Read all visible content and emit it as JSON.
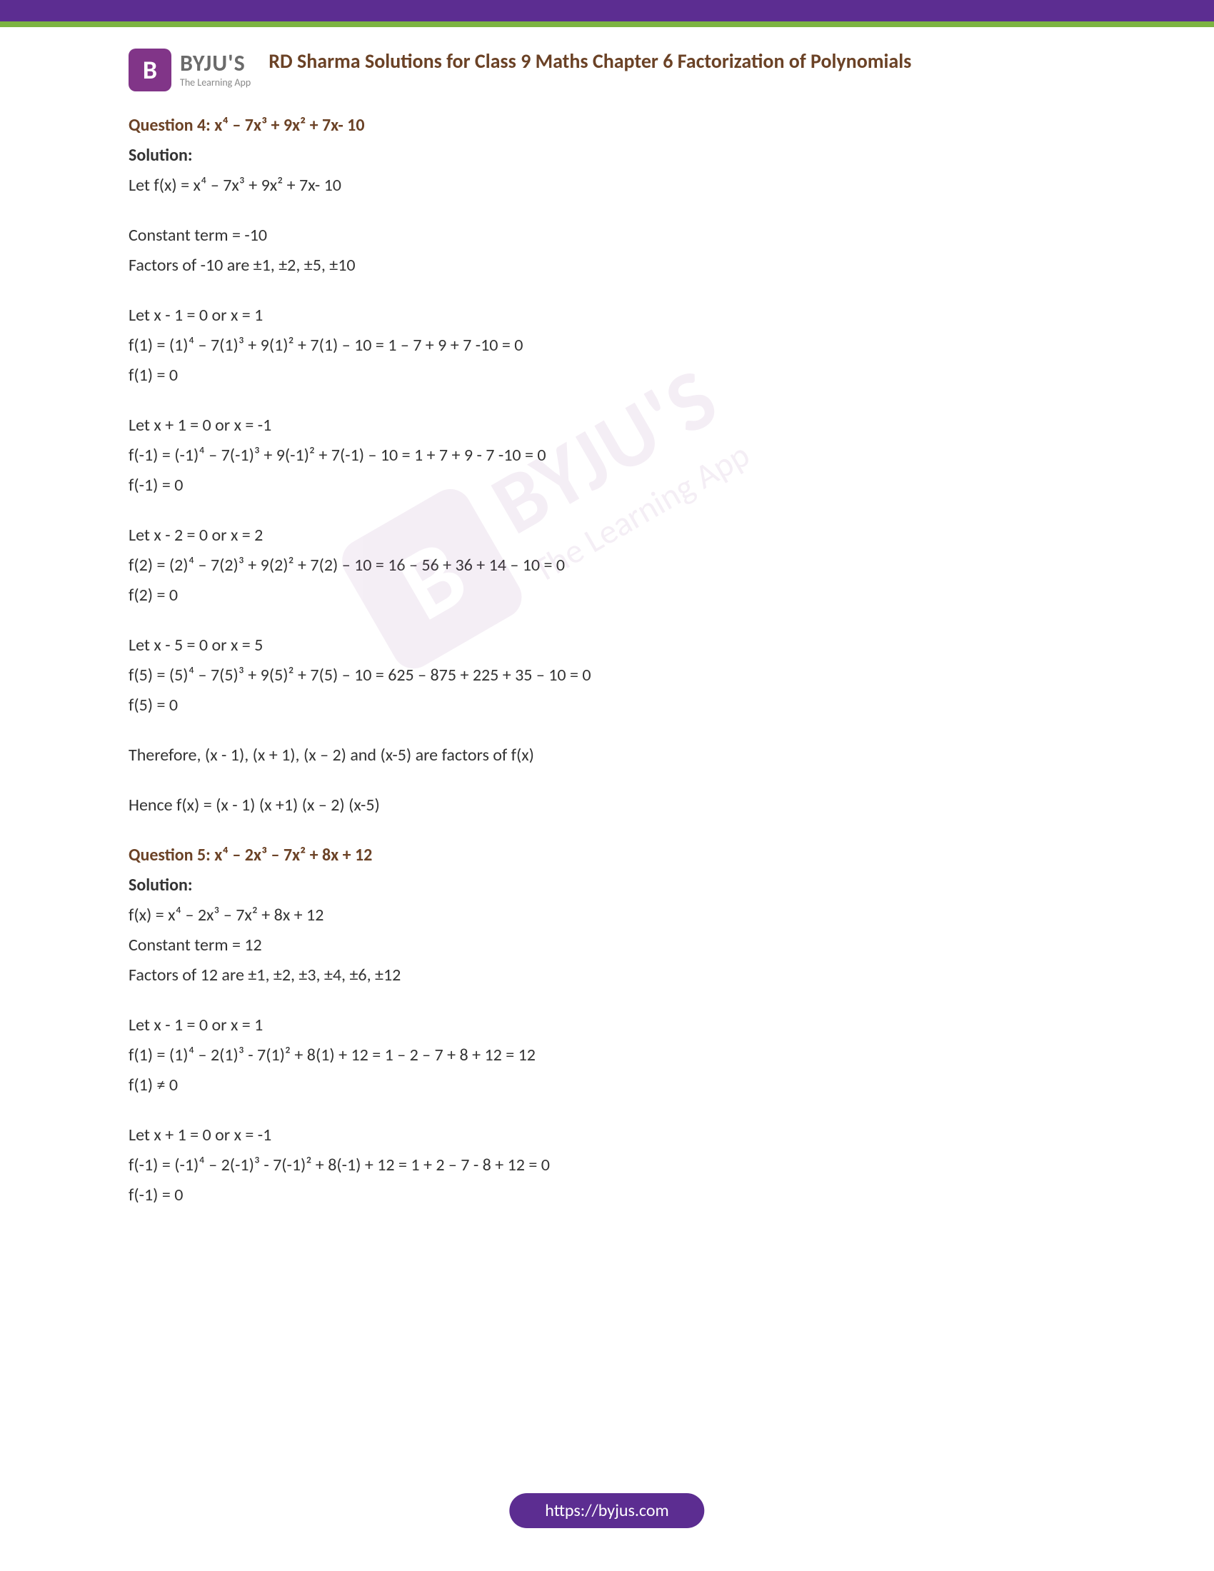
{
  "colors": {
    "top_bar": "#5c2d91",
    "green_bar": "#7cb342",
    "logo_bg": "#813588",
    "title_color": "#6b4226",
    "body_text": "#333333",
    "logo_text": "#6b6b6b",
    "logo_tag": "#888888",
    "footer_bg": "#5c2d91"
  },
  "logo": {
    "icon_letter": "B",
    "name": "BYJU'S",
    "tagline": "The Learning App"
  },
  "title": "RD Sharma Solutions for Class 9 Maths Chapter 6 Factorization of Polynomials",
  "q4": {
    "head": "Question 4: x⁴ – 7x³ + 9x² + 7x- 10",
    "solution_label": "Solution:",
    "l1": "Let f(x) = x⁴ – 7x³ + 9x² + 7x- 10",
    "l2": "Constant term = -10",
    "l3": "Factors of -10 are ±1, ±2, ±5, ±10",
    "l4": "Let x - 1 = 0 or x = 1",
    "l5": "f(1) = (1)⁴ – 7(1)³ + 9(1)² + 7(1) – 10 = 1 – 7 + 9 + 7 -10 = 0",
    "l6": "f(1) =  0",
    "l7": "Let x + 1 = 0 or x = -1",
    "l8": "f(-1) = (-1)⁴ – 7(-1)³ + 9(-1)² + 7(-1) – 10 = 1 + 7 + 9 -  7 -10 = 0",
    "l9": "f(-1) =  0",
    "l10": "Let x - 2 = 0 or x = 2",
    "l11": "f(2) = (2)⁴ – 7(2)³ + 9(2)² + 7(2) – 10 = 16 – 56 + 36 + 14 – 10 = 0",
    "l12": "f(2) =  0",
    "l13": "Let x - 5 = 0 or x = 5",
    "l14": "f(5) = (5)⁴ – 7(5)³ + 9(5)² + 7(5) – 10 = 625 – 875 + 225 + 35 – 10 = 0",
    "l15": "f(5) =  0",
    "l16": "Therefore, (x - 1), (x + 1), (x – 2) and (x-5) are factors of f(x)",
    "l17": "Hence f(x) = (x - 1) (x +1) (x – 2) (x-5)"
  },
  "q5": {
    "head": "Question 5: x⁴ – 2x³ – 7x² + 8x + 12",
    "solution_label": "Solution:",
    "l1": "f(x) = x⁴ – 2x³ – 7x² + 8x + 12",
    "l2": "Constant term = 12",
    "l3": "Factors of 12 are ±1, ±2, ±3, ±4, ±6, ±12",
    "l4": "Let x - 1 = 0 or x = 1",
    "l5": "f(1) = (1)⁴ – 2(1)³ - 7(1)² + 8(1) + 12 = 1 – 2 – 7 + 8 + 12 = 12",
    "l6": "f(1) ≠  0",
    "l7": "Let x + 1 = 0 or x = -1",
    "l8": "f(-1) = (-1)⁴ – 2(-1)³ - 7(-1)² + 8(-1) + 12 = 1 + 2 – 7 - 8 + 12 = 0",
    "l9": "f(-1) =  0"
  },
  "footer": {
    "url": "https://byjus.com"
  },
  "typography": {
    "title_fontsize": 28,
    "body_fontsize": 24,
    "logo_name_fontsize": 32,
    "logo_tag_fontsize": 14,
    "footer_fontsize": 24
  }
}
